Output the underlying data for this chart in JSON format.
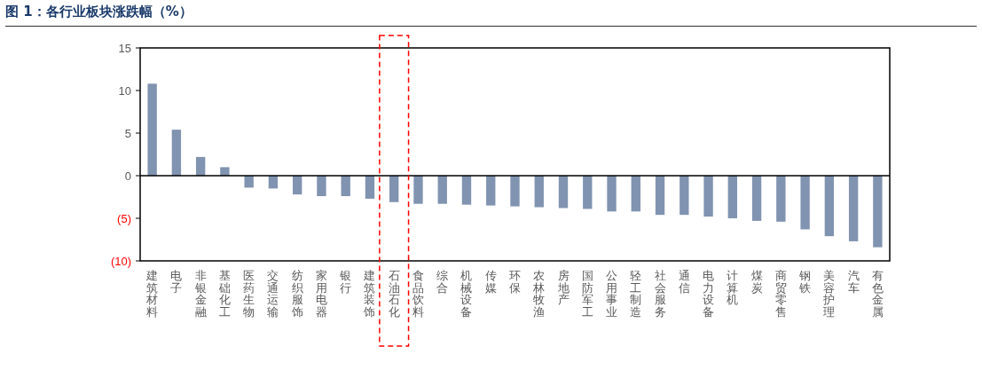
{
  "chart_data": {
    "type": "bar",
    "title": "图 1：各行业板块涨跌幅（%）",
    "categories": [
      "建筑材料",
      "电子",
      "非银金融",
      "基础化工",
      "医药生物",
      "交通运输",
      "纺织服饰",
      "家用电器",
      "银行",
      "建筑装饰",
      "石油石化",
      "食品饮料",
      "综合",
      "机械设备",
      "传媒",
      "环保",
      "农林牧渔",
      "房地产",
      "国防军工",
      "公用事业",
      "轻工制造",
      "社会服务",
      "通信",
      "电力设备",
      "计算机",
      "煤炭",
      "商贸零售",
      "钢铁",
      "美容护理",
      "汽车",
      "有色金属"
    ],
    "values": [
      10.8,
      5.4,
      2.2,
      1.0,
      -1.4,
      -1.5,
      -2.2,
      -2.4,
      -2.4,
      -2.7,
      -3.1,
      -3.3,
      -3.3,
      -3.4,
      -3.5,
      -3.6,
      -3.7,
      -3.8,
      -3.9,
      -4.2,
      -4.2,
      -4.6,
      -4.6,
      -4.8,
      -5.0,
      -5.3,
      -5.4,
      -6.3,
      -7.1,
      -7.7,
      -8.4
    ],
    "color": "#8093b0",
    "ylim": [
      -10,
      15
    ],
    "yticks": [
      {
        "value": -10,
        "label": "(10)"
      },
      {
        "value": -5,
        "label": "(5)"
      },
      0,
      5,
      10,
      15
    ]
  }
}
